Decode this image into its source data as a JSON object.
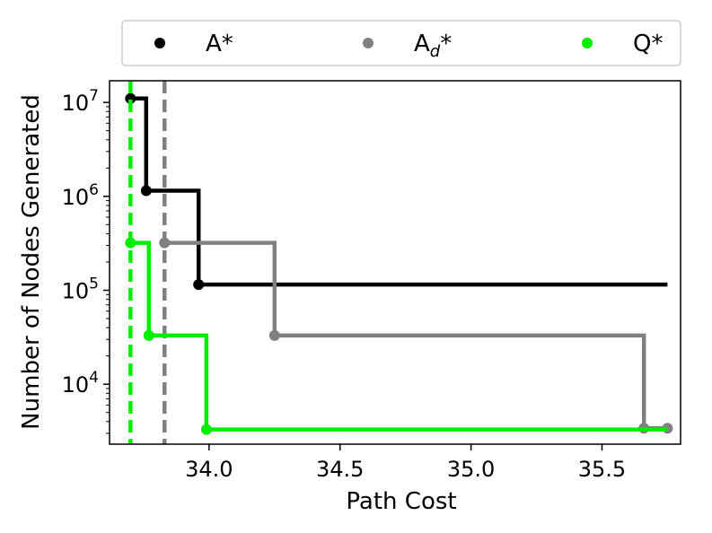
{
  "chart_data": {
    "type": "line",
    "xlabel": "Path Cost",
    "ylabel": "Number of Nodes Generated",
    "xlim": [
      33.62,
      35.8
    ],
    "ylim": [
      2300,
      17000000
    ],
    "yscale": "log",
    "grid": false,
    "legend_position": "top",
    "x_ticks": [
      {
        "value": 34.0,
        "label": "34.0"
      },
      {
        "value": 34.5,
        "label": "34.5"
      },
      {
        "value": 35.0,
        "label": "35.0"
      },
      {
        "value": 35.5,
        "label": "35.5"
      }
    ],
    "y_ticks": [
      {
        "value": 10000,
        "base": "10",
        "exp": "4"
      },
      {
        "value": 100000,
        "base": "10",
        "exp": "5"
      },
      {
        "value": 1000000,
        "base": "10",
        "exp": "6"
      },
      {
        "value": 10000000,
        "base": "10",
        "exp": "7"
      }
    ],
    "series": [
      {
        "name": "A*",
        "name_base": "A",
        "name_sub": "",
        "name_suffix": "*",
        "color": "#000000",
        "points": [
          [
            33.7,
            11000000
          ],
          [
            33.76,
            1150000
          ],
          [
            33.96,
            115000
          ]
        ],
        "end_x": 35.75,
        "dashed_x": null
      },
      {
        "name": "Ad*",
        "name_base": "A",
        "name_sub": "d",
        "name_suffix": "*",
        "color": "#808080",
        "points": [
          [
            33.83,
            320000
          ],
          [
            34.25,
            33000
          ],
          [
            35.66,
            3400
          ],
          [
            35.75,
            3400
          ]
        ],
        "end_x": 35.75,
        "dashed_x": 33.83
      },
      {
        "name": "Q*",
        "name_base": "Q",
        "name_sub": "",
        "name_suffix": "*",
        "color": "#00ee00",
        "points": [
          [
            33.7,
            320000
          ],
          [
            33.77,
            33000
          ],
          [
            33.99,
            3300
          ]
        ],
        "end_x": 35.75,
        "dashed_x": 33.7
      }
    ]
  }
}
